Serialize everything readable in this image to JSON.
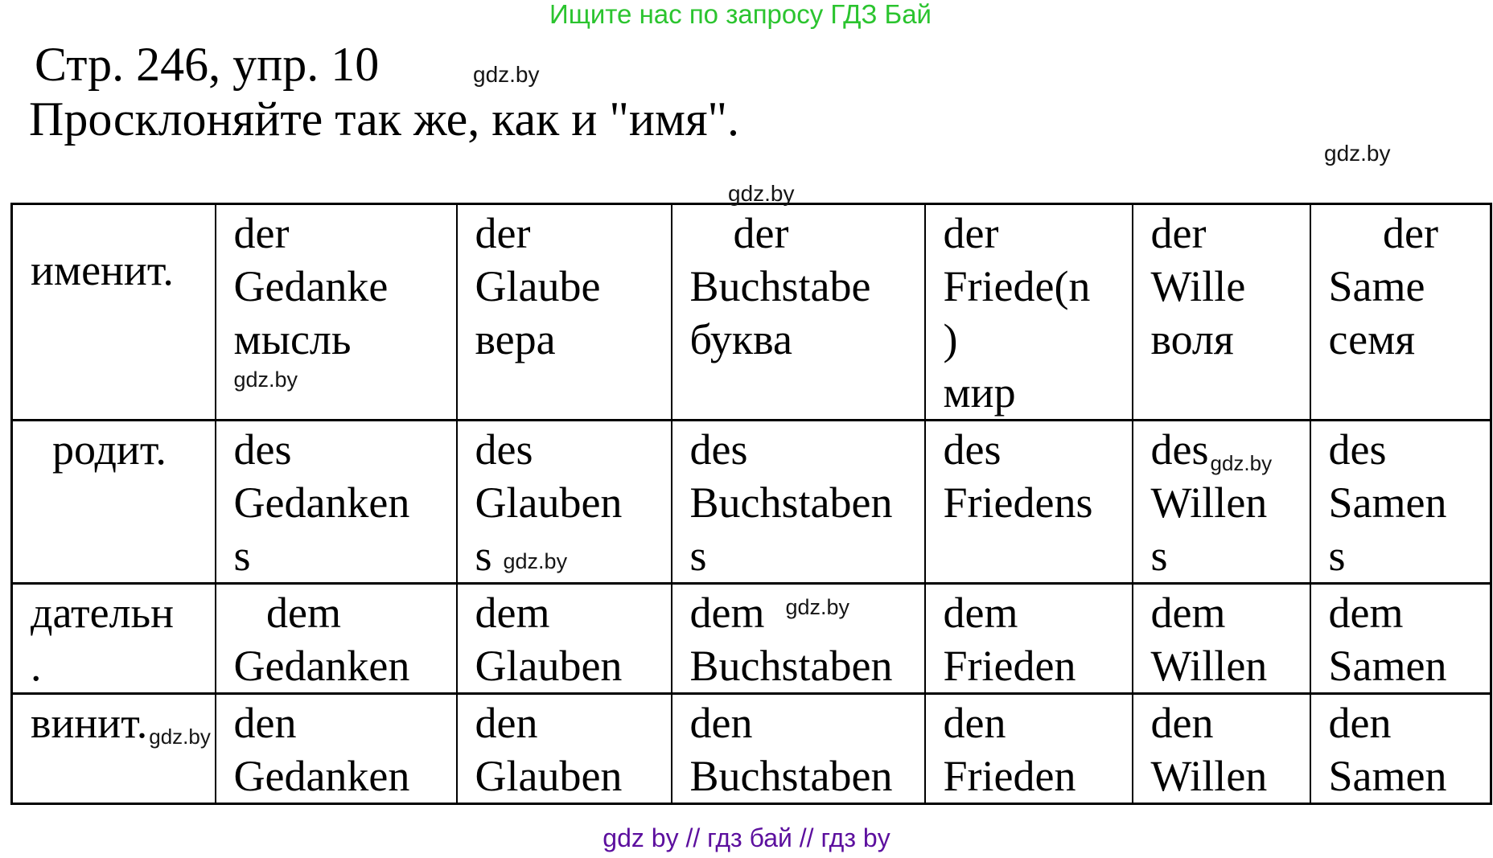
{
  "banner": {
    "text": "Ищите нас по запросу ГДЗ Бай",
    "color": "#2bc42f"
  },
  "heading": {
    "line1": "Стр. 246, упр. 10",
    "line2": "Просклоняйте так же, как и \"имя\"."
  },
  "watermarks": {
    "heading": "gdz.by",
    "right": "gdz.by",
    "above_table": "gdz.by"
  },
  "table": {
    "rows": [
      {
        "label": {
          "lines": [
            "именит."
          ]
        },
        "cells": [
          {
            "lines": [
              "der",
              "Gedanke",
              "мысль"
            ],
            "watermark": {
              "text": "gdz.by",
              "style": "below"
            }
          },
          {
            "lines": [
              "der",
              "Glaube",
              "вера"
            ]
          },
          {
            "lines": [
              "    der",
              "Buchstabe",
              "буква"
            ]
          },
          {
            "lines": [
              "der",
              "Friede(n",
              ")",
              "мир"
            ]
          },
          {
            "lines": [
              "der",
              "Wille",
              "воля"
            ]
          },
          {
            "lines": [
              "     der",
              "Same",
              "семя"
            ]
          }
        ]
      },
      {
        "label": {
          "lines": [
            "  родит."
          ]
        },
        "cells": [
          {
            "lines": [
              "des",
              "Gedanken",
              "s"
            ]
          },
          {
            "lines": [
              "des",
              "Glauben",
              "s"
            ],
            "watermark": {
              "text": "gdz.by",
              "style": "inline",
              "line": 2
            }
          },
          {
            "lines": [
              "des",
              "Buchstaben",
              "s"
            ]
          },
          {
            "lines": [
              "des",
              "Friedens"
            ]
          },
          {
            "lines": [
              "des",
              "Willen",
              "s"
            ],
            "watermark": {
              "text": "gdz.by",
              "style": "sub",
              "line": 0
            }
          },
          {
            "lines": [
              "des",
              "Samen",
              "s"
            ]
          }
        ]
      },
      {
        "label": {
          "lines": [
            "дательн",
            "."
          ]
        },
        "cells": [
          {
            "lines": [
              "   dem",
              "Gedanken"
            ]
          },
          {
            "lines": [
              "dem",
              "Glauben"
            ]
          },
          {
            "lines": [
              "dem",
              "Buchstaben"
            ],
            "watermark": {
              "text": "gdz.by",
              "style": "sup",
              "line": 0
            }
          },
          {
            "lines": [
              "dem",
              "Frieden"
            ]
          },
          {
            "lines": [
              "dem",
              "Willen"
            ]
          },
          {
            "lines": [
              "dem",
              "Samen"
            ]
          }
        ]
      },
      {
        "label": {
          "lines": [
            "винит."
          ],
          "watermark": {
            "text": "gdz.by",
            "style": "sub",
            "line": 0
          }
        },
        "cells": [
          {
            "lines": [
              "den",
              "Gedanken"
            ]
          },
          {
            "lines": [
              "den",
              "Glauben"
            ]
          },
          {
            "lines": [
              "den",
              "Buchstaben"
            ]
          },
          {
            "lines": [
              "den",
              "Frieden"
            ]
          },
          {
            "lines": [
              "den",
              "Willen"
            ]
          },
          {
            "lines": [
              "den",
              "Samen"
            ]
          }
        ]
      }
    ]
  },
  "footer": {
    "text": "gdz by  //  гдз бай  //  гдз by",
    "color": "#5c0f9e"
  }
}
